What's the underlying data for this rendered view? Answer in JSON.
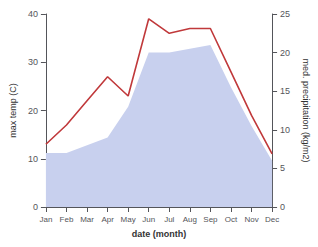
{
  "chart_data": {
    "type": "line",
    "xlabel": "date (month)",
    "ylabel": "max temp (C)",
    "y2label": "med. precipitation (kg/m2)",
    "categories": [
      "Jan",
      "Feb",
      "Mar",
      "Apr",
      "May",
      "Jun",
      "Jul",
      "Aug",
      "Sep",
      "Oct",
      "Nov",
      "Dec"
    ],
    "series": [
      {
        "type": "area",
        "axis": "y2",
        "color": "#c8d0ee",
        "values": [
          7.0,
          7.0,
          8.0,
          9.0,
          13.0,
          20.0,
          20.0,
          20.5,
          21.0,
          15.5,
          10.5,
          6.0
        ]
      },
      {
        "type": "line",
        "color": "#c0393b",
        "values": [
          13.0,
          17.0,
          22.0,
          27.0,
          23.0,
          39.0,
          36.0,
          37.0,
          37.0,
          28.0,
          19.0,
          11.0
        ]
      }
    ],
    "ylim": [
      0,
      40
    ],
    "yticks": [
      0,
      10,
      20,
      30,
      40
    ],
    "y2lim": [
      0,
      25
    ],
    "y2ticks": [
      0,
      5,
      10,
      15,
      20,
      25
    ],
    "grid": false
  }
}
